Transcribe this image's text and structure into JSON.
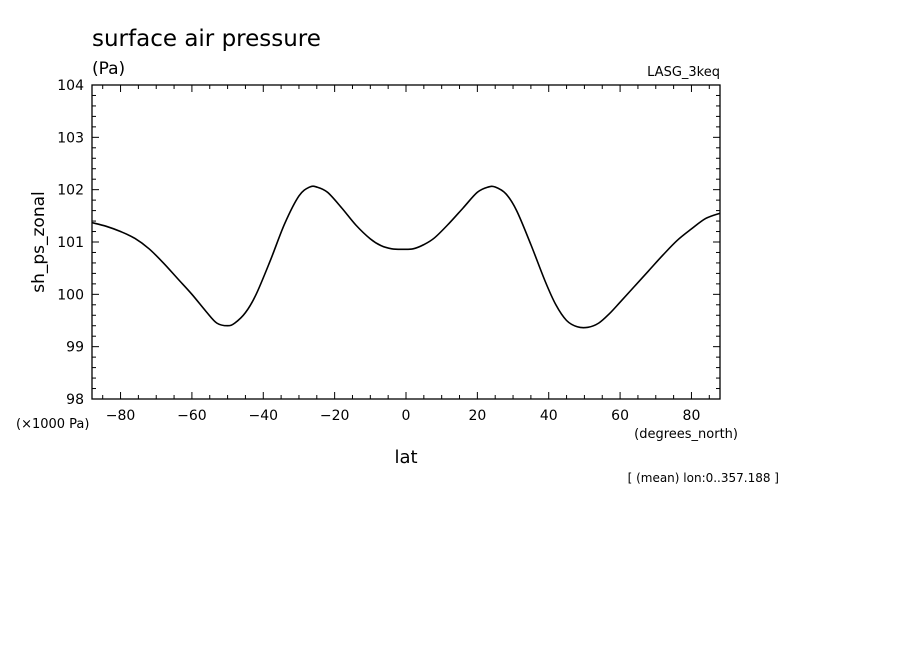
{
  "chart_data": {
    "type": "line",
    "title": "surface air pressure",
    "units": "(Pa)",
    "source_label": "LASG_3keq",
    "ylabel": "sh_ps_zonal",
    "yscale_label": "(×1000 Pa)",
    "xlabel": "lat",
    "xunits_label": "(degrees_north)",
    "footnote": "[ (mean) lon:0..357.188 ]",
    "xlim": [
      -88,
      88
    ],
    "ylim": [
      98,
      104
    ],
    "xticks": [
      -80,
      -60,
      -40,
      -20,
      0,
      20,
      40,
      60,
      80
    ],
    "xtick_labels": [
      "−80",
      "−60",
      "−40",
      "−20",
      "0",
      "20",
      "40",
      "60",
      "80"
    ],
    "yticks": [
      98,
      99,
      100,
      101,
      102,
      103,
      104
    ],
    "ytick_labels": [
      "98",
      "99",
      "100",
      "101",
      "102",
      "103",
      "104"
    ],
    "grid": false,
    "line_color": "#000000",
    "series": [
      {
        "x": [
          -88,
          -84,
          -80,
          -76,
          -72,
          -68,
          -64,
          -60,
          -56,
          -53,
          -50,
          -48,
          -45,
          -42,
          -38,
          -34,
          -30,
          -27,
          -25,
          -22,
          -18,
          -14,
          -10,
          -7,
          -4,
          -1,
          2,
          5,
          8,
          12,
          16,
          20,
          23,
          25,
          28,
          31,
          35,
          39,
          42,
          45,
          48,
          51,
          54,
          57,
          60,
          64,
          68,
          72,
          76,
          80,
          84,
          88
        ],
        "y": [
          101.37,
          101.3,
          101.2,
          101.07,
          100.87,
          100.6,
          100.3,
          100.0,
          99.67,
          99.45,
          99.4,
          99.45,
          99.65,
          100.0,
          100.65,
          101.35,
          101.88,
          102.05,
          102.05,
          101.95,
          101.65,
          101.32,
          101.06,
          100.93,
          100.87,
          100.86,
          100.87,
          100.95,
          101.08,
          101.35,
          101.65,
          101.95,
          102.05,
          102.05,
          101.92,
          101.6,
          100.95,
          100.25,
          99.8,
          99.5,
          99.38,
          99.37,
          99.45,
          99.63,
          99.85,
          100.15,
          100.45,
          100.75,
          101.03,
          101.25,
          101.45,
          101.55
        ]
      }
    ]
  }
}
